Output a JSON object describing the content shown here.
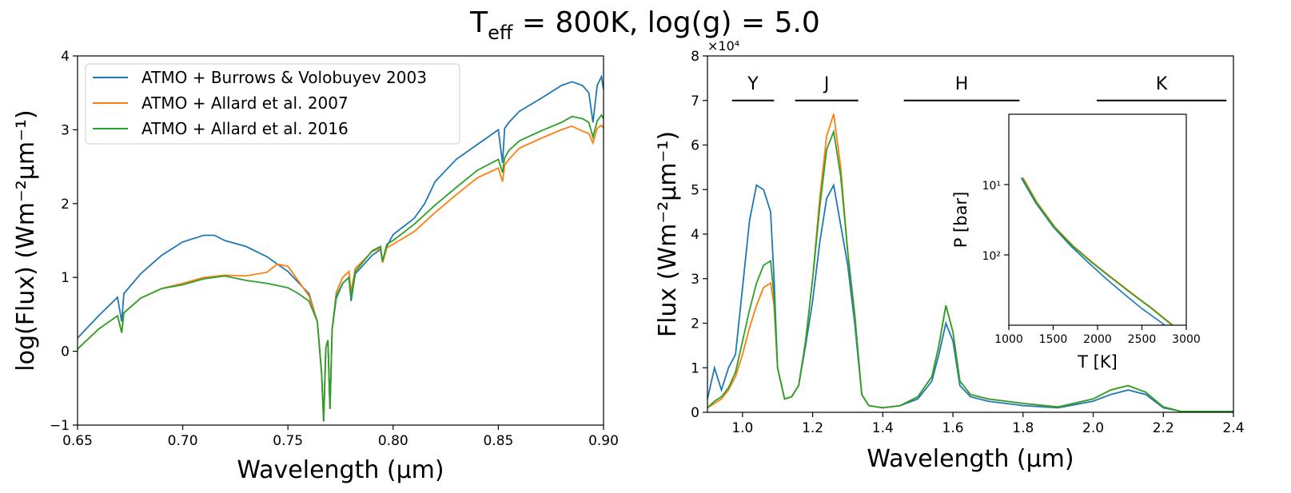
{
  "title": {
    "main": "T",
    "sub": "eff",
    "rest": " = 800K, log(g) = 5.0"
  },
  "colors": {
    "burrows": "#1f77b4",
    "allard2007": "#ff7f0e",
    "allard2016": "#2ca02c"
  },
  "chart_data": [
    {
      "type": "line",
      "panel": "left",
      "xlabel": "Wavelength (μm)",
      "ylabel": "log(Flux) (Wm⁻²μm⁻¹)",
      "xlim": [
        0.65,
        0.9
      ],
      "ylim": [
        -1,
        4
      ],
      "xticks": [
        0.65,
        0.7,
        0.75,
        0.8,
        0.85,
        0.9
      ],
      "xtick_labels": [
        "0.65",
        "0.70",
        "0.75",
        "0.80",
        "0.85",
        "0.90"
      ],
      "yticks": [
        -1,
        0,
        1,
        2,
        3,
        4
      ],
      "ytick_labels": [
        "−1",
        "0",
        "1",
        "2",
        "3",
        "4"
      ],
      "legend": [
        "ATMO + Burrows & Volobuyev 2003",
        "ATMO + Allard et al. 2007",
        "ATMO + Allard et al. 2016"
      ],
      "series": [
        {
          "name": "ATMO + Burrows & Volobuyev 2003",
          "color_key": "burrows",
          "x": [
            0.65,
            0.66,
            0.669,
            0.671,
            0.672,
            0.68,
            0.69,
            0.7,
            0.71,
            0.715,
            0.72,
            0.73,
            0.74,
            0.75,
            0.76,
            0.764,
            0.766,
            0.767,
            0.768,
            0.769,
            0.77,
            0.771,
            0.773,
            0.776,
            0.779,
            0.78,
            0.782,
            0.79,
            0.794,
            0.795,
            0.797,
            0.8,
            0.81,
            0.815,
            0.82,
            0.83,
            0.84,
            0.85,
            0.852,
            0.853,
            0.855,
            0.86,
            0.87,
            0.88,
            0.885,
            0.89,
            0.893,
            0.895,
            0.897,
            0.899,
            0.9
          ],
          "y": [
            0.18,
            0.48,
            0.73,
            0.4,
            0.78,
            1.05,
            1.3,
            1.48,
            1.57,
            1.57,
            1.5,
            1.42,
            1.28,
            1.08,
            0.78,
            0.4,
            -0.3,
            -0.95,
            0.05,
            0.15,
            -0.78,
            0.3,
            0.72,
            0.92,
            1.0,
            0.68,
            1.05,
            1.3,
            1.38,
            1.2,
            1.42,
            1.58,
            1.8,
            2.0,
            2.3,
            2.6,
            2.8,
            3.0,
            2.55,
            3.02,
            3.1,
            3.25,
            3.42,
            3.6,
            3.65,
            3.6,
            3.5,
            3.1,
            3.6,
            3.72,
            3.55
          ]
        },
        {
          "name": "ATMO + Allard et al. 2007",
          "color_key": "allard2007",
          "x": [
            0.65,
            0.66,
            0.669,
            0.671,
            0.672,
            0.68,
            0.69,
            0.7,
            0.71,
            0.72,
            0.73,
            0.74,
            0.745,
            0.75,
            0.755,
            0.76,
            0.764,
            0.766,
            0.767,
            0.768,
            0.769,
            0.77,
            0.771,
            0.773,
            0.776,
            0.779,
            0.78,
            0.782,
            0.79,
            0.794,
            0.795,
            0.797,
            0.8,
            0.81,
            0.82,
            0.83,
            0.84,
            0.85,
            0.852,
            0.853,
            0.855,
            0.86,
            0.87,
            0.88,
            0.885,
            0.89,
            0.893,
            0.895,
            0.897,
            0.899,
            0.9
          ],
          "y": [
            0.03,
            0.3,
            0.48,
            0.25,
            0.52,
            0.72,
            0.85,
            0.92,
            1.0,
            1.03,
            1.02,
            1.07,
            1.18,
            1.15,
            0.95,
            0.75,
            0.4,
            -0.3,
            -0.95,
            0.05,
            0.15,
            -0.78,
            0.3,
            0.8,
            1.0,
            1.08,
            0.8,
            1.12,
            1.35,
            1.4,
            1.2,
            1.4,
            1.45,
            1.62,
            1.88,
            2.12,
            2.35,
            2.48,
            2.3,
            2.52,
            2.6,
            2.75,
            2.88,
            3.0,
            3.05,
            2.98,
            2.95,
            2.82,
            3.02,
            3.06,
            3.02
          ]
        },
        {
          "name": "ATMO + Allard et al. 2016",
          "color_key": "allard2016",
          "x": [
            0.65,
            0.66,
            0.669,
            0.671,
            0.672,
            0.68,
            0.69,
            0.7,
            0.71,
            0.72,
            0.73,
            0.74,
            0.75,
            0.755,
            0.76,
            0.764,
            0.766,
            0.767,
            0.768,
            0.769,
            0.77,
            0.771,
            0.773,
            0.776,
            0.779,
            0.78,
            0.782,
            0.79,
            0.794,
            0.795,
            0.797,
            0.8,
            0.81,
            0.82,
            0.83,
            0.84,
            0.85,
            0.852,
            0.853,
            0.855,
            0.86,
            0.87,
            0.88,
            0.885,
            0.89,
            0.893,
            0.895,
            0.897,
            0.899,
            0.9
          ],
          "y": [
            0.03,
            0.3,
            0.48,
            0.25,
            0.52,
            0.72,
            0.85,
            0.9,
            0.98,
            1.02,
            0.96,
            0.92,
            0.86,
            0.78,
            0.68,
            0.4,
            -0.3,
            -0.95,
            0.05,
            0.15,
            -0.78,
            0.3,
            0.75,
            0.92,
            1.0,
            0.72,
            1.08,
            1.36,
            1.42,
            1.22,
            1.45,
            1.5,
            1.72,
            1.98,
            2.22,
            2.45,
            2.6,
            2.42,
            2.62,
            2.72,
            2.85,
            2.98,
            3.1,
            3.18,
            3.15,
            3.1,
            2.9,
            3.12,
            3.2,
            3.15
          ]
        }
      ]
    },
    {
      "type": "line",
      "panel": "right",
      "xlabel": "Wavelength (μm)",
      "ylabel": "Flux (Wm⁻²μm⁻¹)",
      "offset_text": "×10⁴",
      "xlim": [
        0.9,
        2.4
      ],
      "ylim": [
        0,
        8
      ],
      "xticks": [
        1.0,
        1.2,
        1.4,
        1.6,
        1.8,
        2.0,
        2.2,
        2.4
      ],
      "xtick_labels": [
        "1.0",
        "1.2",
        "1.4",
        "1.6",
        "1.8",
        "2.0",
        "2.2",
        "2.4"
      ],
      "yticks": [
        0,
        1,
        2,
        3,
        4,
        5,
        6,
        7,
        8
      ],
      "ytick_labels": [
        "0",
        "1",
        "2",
        "3",
        "4",
        "5",
        "6",
        "7",
        "8"
      ],
      "bands": [
        {
          "label": "Y",
          "x0": 0.97,
          "x1": 1.09,
          "y": 7.0
        },
        {
          "label": "J",
          "x0": 1.15,
          "x1": 1.33,
          "y": 7.0
        },
        {
          "label": "H",
          "x0": 1.46,
          "x1": 1.79,
          "y": 7.0
        },
        {
          "label": "K",
          "x0": 2.01,
          "x1": 2.38,
          "y": 7.0
        }
      ],
      "series": [
        {
          "name": "ATMO + Burrows & Volobuyev 2003",
          "color_key": "burrows",
          "x": [
            0.9,
            0.92,
            0.94,
            0.96,
            0.98,
            1.0,
            1.02,
            1.04,
            1.06,
            1.08,
            1.09,
            1.1,
            1.12,
            1.14,
            1.16,
            1.18,
            1.2,
            1.22,
            1.24,
            1.26,
            1.28,
            1.3,
            1.32,
            1.34,
            1.36,
            1.4,
            1.45,
            1.5,
            1.54,
            1.56,
            1.58,
            1.6,
            1.62,
            1.65,
            1.7,
            1.8,
            1.9,
            2.0,
            2.05,
            2.1,
            2.15,
            2.2,
            2.25,
            2.3,
            2.4
          ],
          "y": [
            0.3,
            1.0,
            0.5,
            1.0,
            1.3,
            2.8,
            4.3,
            5.1,
            5.0,
            4.5,
            3.0,
            1.0,
            0.3,
            0.35,
            0.6,
            1.5,
            2.5,
            3.8,
            4.8,
            5.1,
            4.2,
            3.3,
            2.0,
            0.4,
            0.15,
            0.1,
            0.15,
            0.3,
            0.7,
            1.3,
            2.0,
            1.6,
            0.6,
            0.35,
            0.25,
            0.15,
            0.1,
            0.25,
            0.4,
            0.5,
            0.4,
            0.1,
            0.02,
            0.02,
            0.02
          ]
        },
        {
          "name": "ATMO + Allard et al. 2007",
          "color_key": "allard2007",
          "x": [
            0.9,
            0.92,
            0.94,
            0.96,
            0.98,
            1.0,
            1.02,
            1.04,
            1.06,
            1.08,
            1.09,
            1.1,
            1.12,
            1.14,
            1.16,
            1.18,
            1.2,
            1.22,
            1.24,
            1.26,
            1.28,
            1.3,
            1.32,
            1.34,
            1.36,
            1.4,
            1.45,
            1.5,
            1.54,
            1.56,
            1.58,
            1.6,
            1.62,
            1.65,
            1.7,
            1.8,
            1.9,
            2.0,
            2.05,
            2.1,
            2.15,
            2.2,
            2.25,
            2.3,
            2.4
          ],
          "y": [
            0.1,
            0.2,
            0.3,
            0.5,
            0.8,
            1.3,
            1.9,
            2.4,
            2.8,
            2.9,
            2.4,
            1.0,
            0.3,
            0.35,
            0.6,
            1.6,
            3.0,
            4.8,
            6.2,
            6.7,
            5.5,
            3.6,
            2.2,
            0.4,
            0.15,
            0.1,
            0.15,
            0.35,
            0.8,
            1.5,
            2.4,
            1.8,
            0.7,
            0.4,
            0.3,
            0.2,
            0.12,
            0.3,
            0.5,
            0.6,
            0.45,
            0.12,
            0.02,
            0.02,
            0.02
          ]
        },
        {
          "name": "ATMO + Allard et al. 2016",
          "color_key": "allard2016",
          "x": [
            0.9,
            0.92,
            0.94,
            0.96,
            0.98,
            1.0,
            1.02,
            1.04,
            1.06,
            1.08,
            1.09,
            1.1,
            1.12,
            1.14,
            1.16,
            1.18,
            1.2,
            1.22,
            1.24,
            1.26,
            1.28,
            1.3,
            1.32,
            1.34,
            1.36,
            1.4,
            1.45,
            1.5,
            1.54,
            1.56,
            1.58,
            1.6,
            1.62,
            1.65,
            1.7,
            1.8,
            1.9,
            2.0,
            2.05,
            2.1,
            2.15,
            2.2,
            2.25,
            2.3,
            2.4
          ],
          "y": [
            0.1,
            0.25,
            0.35,
            0.55,
            0.9,
            1.6,
            2.3,
            2.9,
            3.3,
            3.4,
            2.6,
            1.0,
            0.3,
            0.35,
            0.6,
            1.6,
            3.0,
            4.6,
            5.9,
            6.3,
            5.3,
            3.6,
            2.2,
            0.4,
            0.15,
            0.1,
            0.15,
            0.35,
            0.8,
            1.5,
            2.4,
            1.8,
            0.7,
            0.4,
            0.3,
            0.2,
            0.12,
            0.3,
            0.5,
            0.6,
            0.45,
            0.12,
            0.02,
            0.02,
            0.02
          ]
        }
      ]
    },
    {
      "type": "line",
      "panel": "inset",
      "xlabel": "T [K]",
      "ylabel": "P [bar]",
      "xlim": [
        1000,
        3000
      ],
      "ylim": [
        1,
        1000
      ],
      "yscale": "log_inverted",
      "xticks": [
        1000,
        1500,
        2000,
        2500,
        3000
      ],
      "xtick_labels": [
        "1000",
        "1500",
        "2000",
        "2500",
        "3000"
      ],
      "yticks": [
        10,
        100
      ],
      "ytick_labels": [
        "10¹",
        "10²"
      ],
      "series": [
        {
          "name": "ATMO + Burrows & Volobuyev 2003",
          "color_key": "burrows",
          "x": [
            1140,
            1300,
            1500,
            1700,
            1900,
            2100,
            2300,
            2500,
            2760
          ],
          "y": [
            8,
            18,
            40,
            75,
            130,
            220,
            360,
            580,
            1000
          ]
        },
        {
          "name": "ATMO + Allard et al. 2007",
          "color_key": "allard2007",
          "x": [
            1160,
            1320,
            1520,
            1730,
            1950,
            2180,
            2400,
            2620,
            2850
          ],
          "y": [
            8,
            18,
            40,
            75,
            130,
            220,
            360,
            580,
            1000
          ]
        },
        {
          "name": "ATMO + Allard et al. 2016",
          "color_key": "allard2016",
          "x": [
            1150,
            1310,
            1510,
            1720,
            1940,
            2170,
            2390,
            2610,
            2840
          ],
          "y": [
            8,
            18,
            40,
            75,
            130,
            220,
            360,
            580,
            1000
          ]
        }
      ]
    }
  ]
}
